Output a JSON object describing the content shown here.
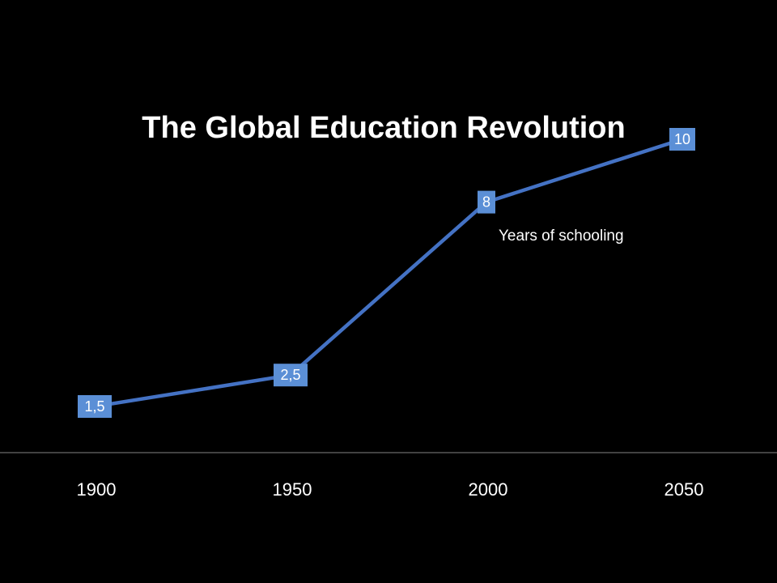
{
  "chart_data": {
    "type": "line",
    "title": "The Global Education Revolution",
    "xlabel": "",
    "ylabel": "",
    "categories": [
      "1900",
      "1950",
      "2000",
      "2050"
    ],
    "series": [
      {
        "name": "Years of schooling",
        "values": [
          1.5,
          2.5,
          8,
          10
        ],
        "data_labels": [
          "1,5",
          "2,5",
          "8",
          "10"
        ]
      }
    ],
    "ylim": [
      0,
      11
    ],
    "grid": false,
    "legend": "none",
    "colors": {
      "background": "#000000",
      "line": "#4472c4",
      "label_box": "#5b8fd6",
      "text": "#ffffff",
      "axis": "#595959"
    }
  }
}
